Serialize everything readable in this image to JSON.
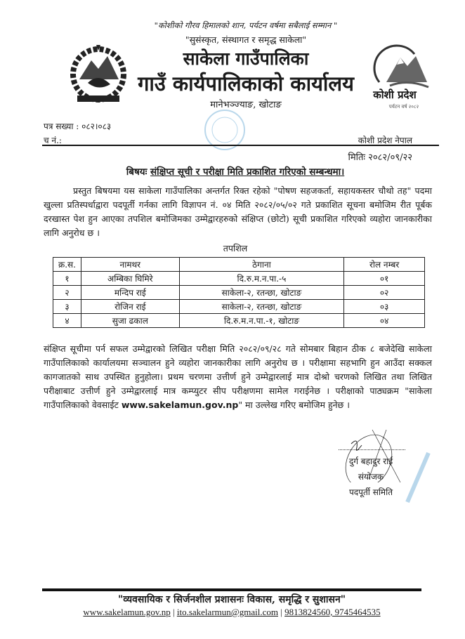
{
  "header": {
    "quote1": "\"कोशीको गौरव हिमालको शान, पर्यटन वर्षमा सबैलाई सम्मान \"",
    "quote2": "\"सुसंस्कृत, संस्थागत र समृद्ध साकेला\"",
    "title1": "साकेला गाउँपालिका",
    "title2": "गाउँ कार्यपालिकाको कार्यालय",
    "address": "मानेभञ्ज्याङ, खोटाङ",
    "right_logo_text": "कोशी प्रदेश",
    "right_logo_sub": "पर्यटन वर्ष २०८२"
  },
  "meta": {
    "ref_no": "पत्र सख्या : ०८२।०८३",
    "dispatch_no": "च नं.:",
    "province": "कोशी प्रदेश नेपाल",
    "date": "मितिः २०८२/०९/२२"
  },
  "subject": {
    "label": "बिषयः",
    "text": "संक्षिप्त सूची र परीक्षा मिति प्रकाशित गरिएको सम्बन्धमा।"
  },
  "paragraph1": "प्रस्तुत बिषयमा यस साकेला गाउँपालिका अन्तर्गत रिक्त रहेको \"पोषण सहजकर्ता, सहायकस्तर चौथो तह\" पदमा खुल्ला प्रतिस्पर्धाद्वारा पदपूर्ती गर्नका लागि विज्ञापन नं. ०४ मिति २०८२/०५/०२ गते प्रकाशित सूचना बमोजिम रीत पूर्बक दरखास्त पेश हुन आएका तपशिल बमोजिमका उम्मेद्वारहरुको संक्षिप्त (छोटो) सूची प्रकाशित गरिएको व्यहोरा जानकारीका लागि अनुरोध छ ।",
  "table": {
    "caption": "तपशिल",
    "headers": [
      "क्र.स.",
      "नामथर",
      "ठेगाना",
      "रोल नम्बर"
    ],
    "rows": [
      [
        "१",
        "अम्बिका घिमिरे",
        "दि.रु.म.न.पा.-५",
        "०१"
      ],
      [
        "२",
        "मन्दिप राई",
        "साकेला-२, रतन्छा, खोटाङ",
        "०२"
      ],
      [
        "३",
        "रोजिन राई",
        "साकेला-२, रतन्छा, खोटाङ",
        "०३"
      ],
      [
        "४",
        "सुजा ढकाल",
        "दि.रु.म.न.पा.-१, खोटाङ",
        "०४"
      ]
    ]
  },
  "paragraph2": {
    "text_before": "संक्षिप्त सूचीमा पर्न सफल उम्मेद्वारको लिखित परीक्षा मिति २०८२/०९/२८ गते सोमबार बिहान ठीक ८ बजेदेखि साकेला गाउँपालिकाको कार्यालयमा सञ्चालन हुने व्यहोरा जानकारीका लागि अनुरोध छ । परीक्षामा सहभागि हुन आउँदा सक्कल कागजातको साथ उपस्थित हुनुहोला। प्रथम चरणमा उत्तीर्ण हुने उम्मेद्वारलाई मात्र दोश्रो चरणको लिखित तथा लिखित परीक्षाबाट उत्तीर्ण हुने उम्मेद्वारलाई मात्र कम्प्युटर सीप परीक्षणमा सामेल गराईनेछ । परीक्षाको पाठ्यक्रम \"साकेला गाउँपालिकाको वेवसाईट ",
    "website": "www.sakelamun.gov.np",
    "text_after": "\" मा उल्लेख गरिए बमोजिम हुनेछ ।"
  },
  "signature": {
    "name": "दुर्ग बहादुर राई",
    "role": "संयोजक",
    "committee": "पदपूर्ती समिति"
  },
  "footer": {
    "slogan": "\"व्यवसायिक र सिर्जनशील प्रशासनः विकास, समृद्धि र सुशासन\"",
    "website": "www.sakelamun.gov.np",
    "email": "ito.sakelarmun@gmail.com",
    "phones": "9813824560, 9745464535"
  }
}
